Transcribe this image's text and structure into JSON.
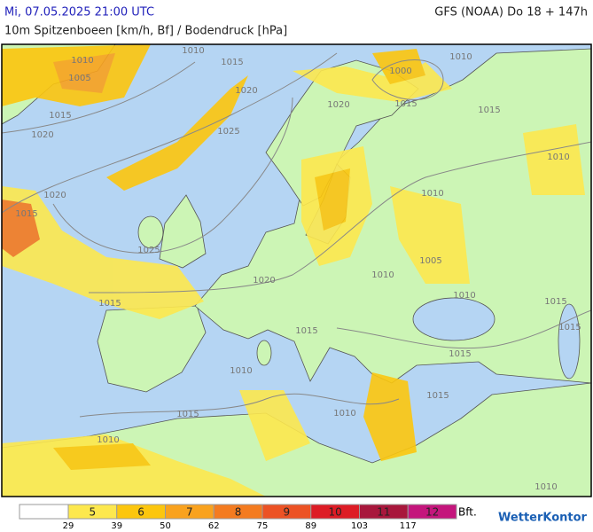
{
  "header": {
    "datetime": "Mi, 07.05.2025 21:00 UTC",
    "model": "GFS (NOAA) Do 18 + 147h",
    "subtitle": "10m Spitzenboeen [km/h, Bf] / Bodendruck [hPa]"
  },
  "map": {
    "isobar_labels": [
      "1010",
      "1005",
      "1015",
      "1010",
      "1020",
      "1015",
      "1020",
      "1025",
      "1020",
      "1000",
      "1015",
      "1010",
      "1015",
      "1010",
      "1010",
      "1020",
      "1015",
      "1025",
      "1005",
      "1010",
      "1020",
      "1010",
      "1015",
      "1015",
      "1015",
      "1015",
      "1015",
      "1010",
      "1015",
      "1010",
      "1010",
      "1015",
      "1010"
    ]
  },
  "legend": {
    "base_color": "#ffffff",
    "classes": [
      {
        "bft": "5",
        "color": "#fde84e"
      },
      {
        "bft": "6",
        "color": "#fcc60e"
      },
      {
        "bft": "7",
        "color": "#f9a21e"
      },
      {
        "bft": "8",
        "color": "#f47b20"
      },
      {
        "bft": "9",
        "color": "#ec5224"
      },
      {
        "bft": "10",
        "color": "#dd1c25"
      },
      {
        "bft": "11",
        "color": "#a8173c"
      },
      {
        "bft": "12",
        "color": "#c4157c"
      }
    ],
    "unit": "Bft.",
    "thresholds": [
      29,
      39,
      50,
      62,
      75,
      89,
      103,
      117
    ]
  },
  "brand": "WetterKontor"
}
